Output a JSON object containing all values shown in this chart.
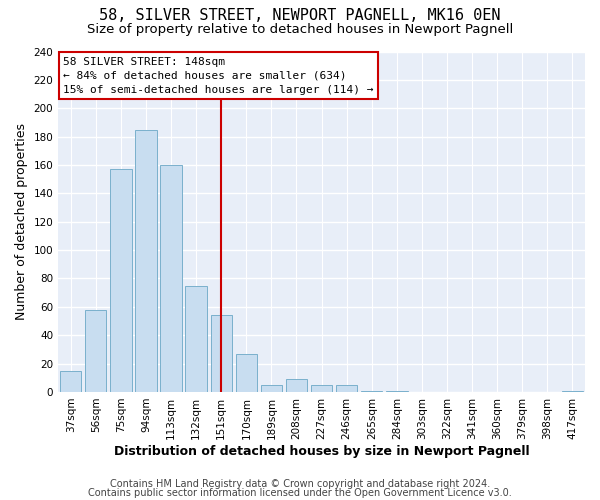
{
  "title": "58, SILVER STREET, NEWPORT PAGNELL, MK16 0EN",
  "subtitle": "Size of property relative to detached houses in Newport Pagnell",
  "xlabel": "Distribution of detached houses by size in Newport Pagnell",
  "ylabel": "Number of detached properties",
  "bar_labels": [
    "37sqm",
    "56sqm",
    "75sqm",
    "94sqm",
    "113sqm",
    "132sqm",
    "151sqm",
    "170sqm",
    "189sqm",
    "208sqm",
    "227sqm",
    "246sqm",
    "265sqm",
    "284sqm",
    "303sqm",
    "322sqm",
    "341sqm",
    "360sqm",
    "379sqm",
    "398sqm",
    "417sqm"
  ],
  "bar_values": [
    15,
    58,
    157,
    185,
    160,
    75,
    54,
    27,
    5,
    9,
    5,
    5,
    1,
    1,
    0,
    0,
    0,
    0,
    0,
    0,
    1
  ],
  "bar_color": "#c8ddf0",
  "bar_edge_color": "#7ab0cc",
  "vline_color": "#cc0000",
  "ylim": [
    0,
    240
  ],
  "yticks": [
    0,
    20,
    40,
    60,
    80,
    100,
    120,
    140,
    160,
    180,
    200,
    220,
    240
  ],
  "annotation_title": "58 SILVER STREET: 148sqm",
  "annotation_line1": "← 84% of detached houses are smaller (634)",
  "annotation_line2": "15% of semi-detached houses are larger (114) →",
  "annotation_box_color": "#ffffff",
  "annotation_box_edge": "#cc0000",
  "footer_line1": "Contains HM Land Registry data © Crown copyright and database right 2024.",
  "footer_line2": "Contains public sector information licensed under the Open Government Licence v3.0.",
  "background_color": "#ffffff",
  "plot_background": "#e8eef8",
  "grid_color": "#ffffff",
  "title_fontsize": 11,
  "subtitle_fontsize": 9.5,
  "axis_label_fontsize": 9,
  "tick_fontsize": 7.5,
  "footer_fontsize": 7,
  "annotation_fontsize": 8
}
